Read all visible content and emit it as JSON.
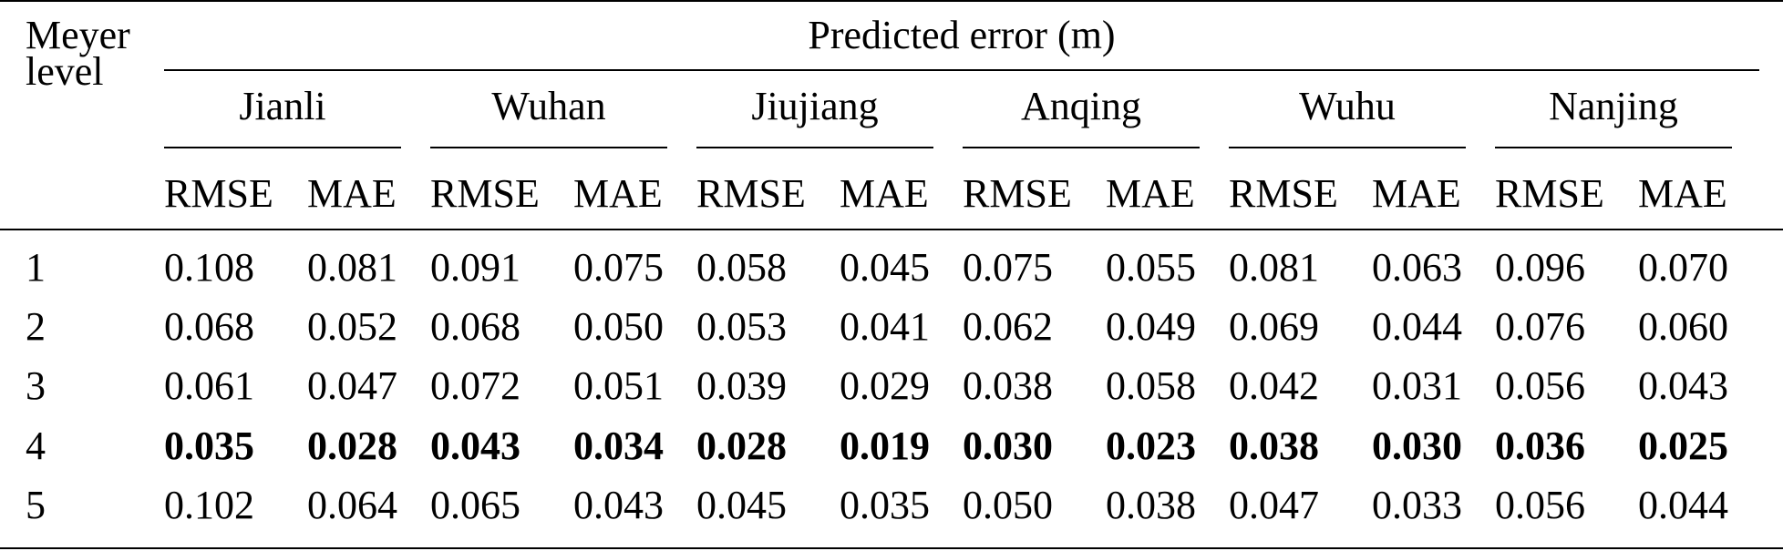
{
  "table": {
    "row_header_line1": "Meyer",
    "row_header_line2": "level",
    "group_title": "Predicted error (m)",
    "stations": [
      "Jianli",
      "Wuhan",
      "Jiujiang",
      "Anqing",
      "Wuhu",
      "Nanjing"
    ],
    "metric_labels": [
      "RMSE",
      "MAE"
    ],
    "rows": [
      {
        "level": "1",
        "values": [
          "0.108",
          "0.081",
          "0.091",
          "0.075",
          "0.058",
          "0.045",
          "0.075",
          "0.055",
          "0.081",
          "0.063",
          "0.096",
          "0.070"
        ],
        "bold": false
      },
      {
        "level": "2",
        "values": [
          "0.068",
          "0.052",
          "0.068",
          "0.050",
          "0.053",
          "0.041",
          "0.062",
          "0.049",
          "0.069",
          "0.044",
          "0.076",
          "0.060"
        ],
        "bold": false
      },
      {
        "level": "3",
        "values": [
          "0.061",
          "0.047",
          "0.072",
          "0.051",
          "0.039",
          "0.029",
          "0.038",
          "0.058",
          "0.042",
          "0.031",
          "0.056",
          "0.043"
        ],
        "bold": false
      },
      {
        "level": "4",
        "values": [
          "0.035",
          "0.028",
          "0.043",
          "0.034",
          "0.028",
          "0.019",
          "0.030",
          "0.023",
          "0.038",
          "0.030",
          "0.036",
          "0.025"
        ],
        "bold": true
      },
      {
        "level": "5",
        "values": [
          "0.102",
          "0.064",
          "0.065",
          "0.043",
          "0.045",
          "0.035",
          "0.050",
          "0.038",
          "0.047",
          "0.033",
          "0.056",
          "0.044"
        ],
        "bold": false
      }
    ]
  }
}
